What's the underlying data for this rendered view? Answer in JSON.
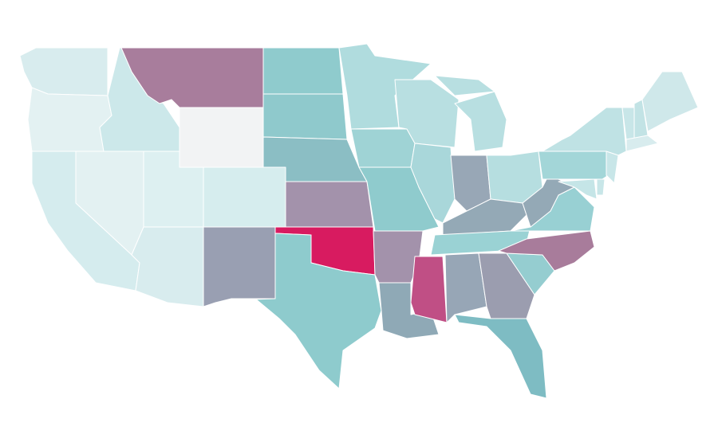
{
  "map": {
    "regions": [
      {
        "color": "#d8ecee"
      },
      {
        "color": "#e3f1f2"
      },
      {
        "color": "#cce8ea"
      },
      {
        "color": "#a87d9c"
      },
      {
        "color": "#f2f3f4"
      },
      {
        "color": "#e3f1f2"
      },
      {
        "color": "#d5ecee"
      },
      {
        "color": "#ddf0f1"
      },
      {
        "color": "#d8ecee"
      },
      {
        "color": "#d6edee"
      },
      {
        "color": "#999fb2"
      },
      {
        "color": "#8fcbcd"
      },
      {
        "color": "#8fc9cc"
      },
      {
        "color": "#8bbec4"
      },
      {
        "color": "#a392ab"
      },
      {
        "color": "#d81b60"
      },
      {
        "color": "#8ecbcd"
      },
      {
        "color": "#b0dcde"
      },
      {
        "color": "#9fd3d5"
      },
      {
        "color": "#8fcbcd"
      },
      {
        "color": "#a392ab"
      },
      {
        "color": "#8fa9b6"
      },
      {
        "color": "#b8dfe1"
      },
      {
        "color": "#a9d7da"
      },
      {
        "color": "#b8dfe1"
      },
      {
        "color": "#98a7b6"
      },
      {
        "color": "#b6dee0"
      },
      {
        "color": "#94a9b6"
      },
      {
        "color": "#9ad2d4"
      },
      {
        "color": "#c04f85"
      },
      {
        "color": "#97a6b6"
      },
      {
        "color": "#9b9daf"
      },
      {
        "color": "#7ebcc3"
      },
      {
        "color": "#95cdd0"
      },
      {
        "color": "#a87c9b"
      },
      {
        "color": "#98d0d3"
      },
      {
        "color": "#94a9b6"
      },
      {
        "color": "#a3d6d8"
      },
      {
        "color": "#bfe2e4"
      },
      {
        "color": "#c5e5e7"
      },
      {
        "color": "#c8e6e8"
      },
      {
        "color": "#c8e6e8"
      },
      {
        "color": "#c8e6e8"
      },
      {
        "color": "#c2e3e5"
      },
      {
        "color": "#cfe8ea"
      },
      {
        "color": "#d8ecee"
      }
    ]
  }
}
